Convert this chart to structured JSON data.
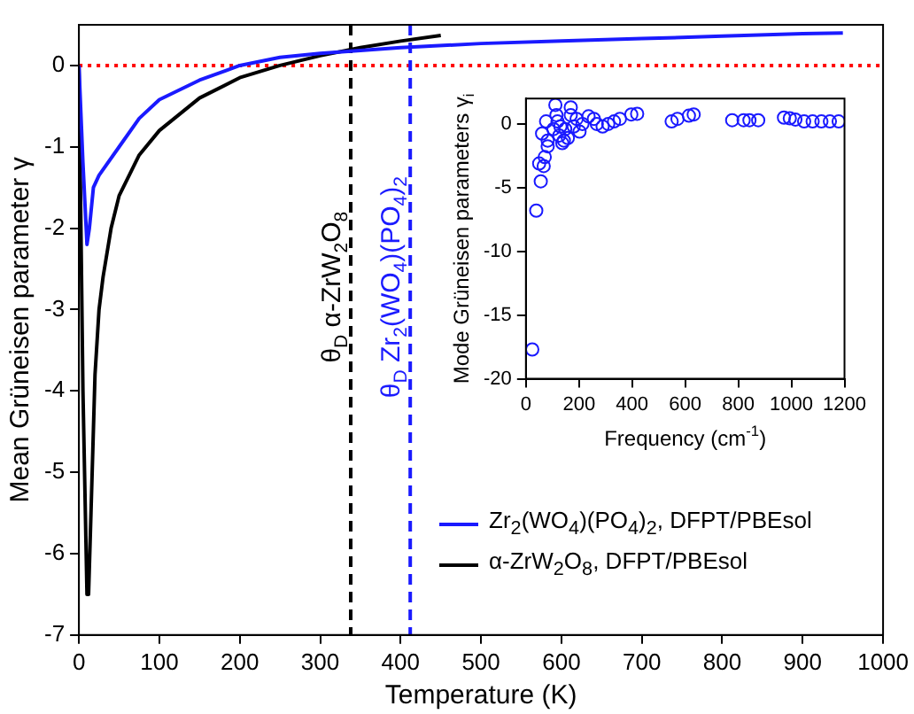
{
  "chart_data": [
    {
      "type": "line",
      "xlabel": "Temperature (K)",
      "ylabel": "Mean Grüneisen parameter γ",
      "xlim": [
        0,
        1000
      ],
      "xticks": [
        0,
        100,
        200,
        300,
        400,
        500,
        600,
        700,
        800,
        900,
        1000
      ],
      "ylim": [
        -7,
        0.5
      ],
      "yticks": [
        -7,
        -6,
        -5,
        -4,
        -3,
        -2,
        -1,
        0
      ],
      "grid": false,
      "legend": "bottom right",
      "series": [
        {
          "name": "Zr$_{2}$(WO$_{4}$)(PO$_{4}$)$_{2}$, DFPT/PBEsol",
          "color": "#1a1aff",
          "x": [
            0,
            5,
            10,
            13,
            18,
            25,
            50,
            75,
            100,
            150,
            200,
            250,
            300,
            400,
            500,
            600,
            700,
            800,
            900,
            950
          ],
          "values": [
            0,
            -1.2,
            -2.2,
            -2.0,
            -1.5,
            -1.35,
            -1.0,
            -0.65,
            -0.42,
            -0.18,
            0.0,
            0.1,
            0.15,
            0.22,
            0.27,
            0.3,
            0.33,
            0.36,
            0.39,
            0.4
          ]
        },
        {
          "name": "α-ZrW$_{2}$O$_{8}$, DFPT/PBEsol",
          "color": "#000000",
          "x": [
            0,
            5,
            10,
            12,
            15,
            20,
            25,
            30,
            40,
            50,
            75,
            100,
            150,
            200,
            250,
            300,
            350,
            400,
            450
          ],
          "values": [
            0,
            -4,
            -6.5,
            -6.5,
            -5.5,
            -3.8,
            -3.0,
            -2.6,
            -2.0,
            -1.6,
            -1.1,
            -0.8,
            -0.4,
            -0.15,
            0.0,
            0.12,
            0.22,
            0.3,
            0.37
          ]
        }
      ],
      "ref_lines": [
        {
          "axis": "y",
          "value": 0,
          "label": null,
          "color": "#ff0000",
          "line_style": "dotted"
        },
        {
          "axis": "x",
          "value": 338,
          "label": "θ$_{D}$ α-ZrW$_{2}$O$_{8}$",
          "color": "#000000",
          "line_style": "dashed"
        },
        {
          "axis": "x",
          "value": 412,
          "label": "θ$_{D}$ Zr$_{2}$(WO$_{4}$)(PO$_{4}$)$_{2}$",
          "color": "#1a1aff",
          "line_style": "dashed"
        }
      ]
    },
    {
      "type": "scatter",
      "xlabel": "Frequency (cm$^{-1}$)",
      "ylabel": "Mode Grüneisen parameters γ$_{i}$",
      "xlim": [
        0,
        1200
      ],
      "xticks": [
        0,
        200,
        400,
        600,
        800,
        1000,
        1200
      ],
      "ylim": [
        -20,
        2
      ],
      "yticks": [
        -20,
        -15,
        -10,
        -5,
        0
      ],
      "grid": false,
      "marker": "circle",
      "color": "#1a1aff",
      "x": [
        24,
        39,
        50,
        56,
        61,
        67,
        71,
        76,
        82,
        82,
        93,
        104,
        111,
        115,
        119,
        126,
        130,
        137,
        143,
        148,
        158,
        169,
        169,
        180,
        191,
        202,
        213,
        236,
        256,
        267,
        289,
        310,
        332,
        354,
        397,
        419,
        549,
        571,
        614,
        632,
        777,
        820,
        842,
        875,
        972,
        994,
        1015,
        1048,
        1080,
        1113,
        1145,
        1178
      ],
      "values": [
        -17.7,
        -6.8,
        -3.1,
        -4.5,
        -0.75,
        -3.3,
        -2.6,
        0.2,
        -1.75,
        -1.3,
        null,
        -0.4,
        1.5,
        0.7,
        0.2,
        -0.9,
        -0.2,
        -1.5,
        -1.3,
        -0.4,
        -1.1,
        0.7,
        1.3,
        -0.2,
        0.4,
        -0.6,
        0,
        0.6,
        0.4,
        0,
        -0.2,
        0,
        0.2,
        0.4,
        0.75,
        0.8,
        0.2,
        0.4,
        0.65,
        0.75,
        0.3,
        0.3,
        0.3,
        0.3,
        0.5,
        0.45,
        0.35,
        0.2,
        0.2,
        0.2,
        0.2,
        0.2
      ]
    }
  ]
}
